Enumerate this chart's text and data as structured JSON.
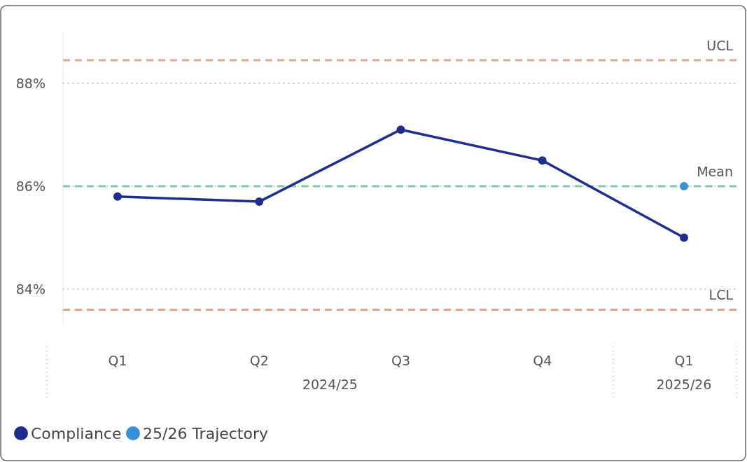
{
  "chart_data": {
    "type": "line",
    "categories": [
      "Q1",
      "Q2",
      "Q3",
      "Q4",
      "Q1"
    ],
    "series": [
      {
        "name": "Compliance",
        "color": "#1f2e8c",
        "values": [
          85.8,
          85.7,
          87.1,
          86.5,
          85.0
        ]
      },
      {
        "name": "25/26 Trajectory",
        "type": "scatter",
        "color": "#3a8fd9",
        "values": [
          null,
          null,
          null,
          null,
          86.0
        ]
      }
    ],
    "ylim": [
      83.3,
      89
    ],
    "yticks": [
      {
        "value": 84,
        "label": "84%"
      },
      {
        "value": 86,
        "label": "86%"
      },
      {
        "value": 88,
        "label": "88%"
      }
    ],
    "grid": "y",
    "marker": "circle",
    "legend": "bottom left",
    "ref_lines": [
      {
        "axis": "y",
        "value": 88.45,
        "label": "UCL",
        "color": "#e0a488",
        "line_style": "dashed"
      },
      {
        "axis": "y",
        "value": 86.0,
        "label": "Mean",
        "color": "#7cc9a6",
        "line_style": "dashed"
      },
      {
        "axis": "y",
        "value": 83.6,
        "label": "LCL",
        "color": "#e0a488",
        "line_style": "dashed"
      }
    ],
    "annotations": [
      "2024/25",
      "2025/26"
    ]
  }
}
